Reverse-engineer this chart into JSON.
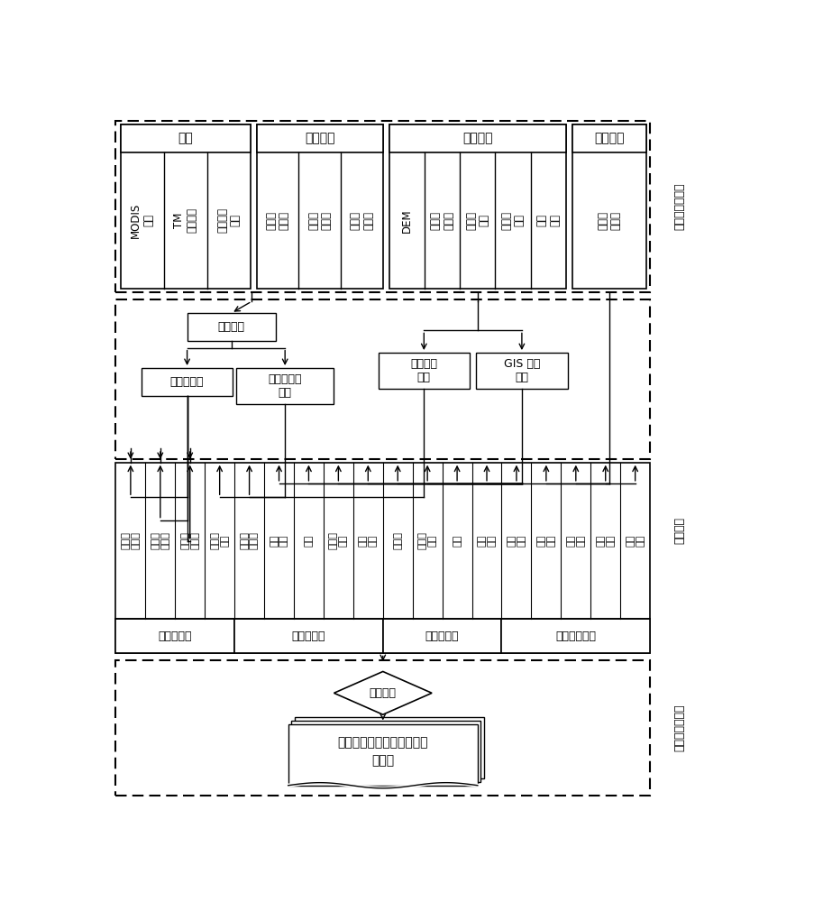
{
  "fig_width": 9.04,
  "fig_height": 10.0,
  "bg_color": "#ffffff",
  "line_color": "#000000",
  "text_color": "#000000",
  "top_categories": [
    {
      "label": "遥感",
      "items": [
        "MODIS\n数据",
        "TM\n遥感数据",
        "环境减灾\n卫星"
      ],
      "n": 3
    },
    {
      "label": "实验观测",
      "items": [
        "野外点\n火实验",
        "野外样\n本观测",
        "气象观\n测数据"
      ],
      "n": 3
    },
    {
      "label": "空间数据",
      "items": [
        "DEM",
        "基础地\n理数据",
        "草场资\n源图",
        "土地利\n用图",
        "人口\n分布"
      ],
      "n": 5
    },
    {
      "label": "调查统计",
      "items": [
        "社会经\n济数据"
      ],
      "n": 1
    }
  ],
  "risk_col_texts": [
    "可燃物\n承载量",
    "可燃物\n含水率",
    "可燃物\n连续度",
    "坡度、\n坡向",
    "人类活\n动强度",
    "社会\n经济",
    "人员",
    "草场、\n牲畜",
    "基础\n设施",
    "饲料草",
    "老幼年\n人口",
    "幼畜",
    "易燃\n设施",
    "防火\n站点",
    "防火\n设施",
    "防火\n人员",
    "防火\n投入",
    "反应\n时间"
  ],
  "eval_groups": [
    {
      "label": "危险性评价",
      "start": 0,
      "end": 4
    },
    {
      "label": "暴露性评价",
      "start": 4,
      "end": 9
    },
    {
      "label": "脆弱性评价",
      "start": 9,
      "end": 13
    },
    {
      "label": "防火能力评价",
      "start": 13,
      "end": 18
    }
  ],
  "section_labels": [
    "数据获取与处理",
    "风险分析",
    "风险评估及表征"
  ],
  "coupling_label": "耦合模型",
  "output_label": "草原火灾风险快速评估及风\n险标准"
}
